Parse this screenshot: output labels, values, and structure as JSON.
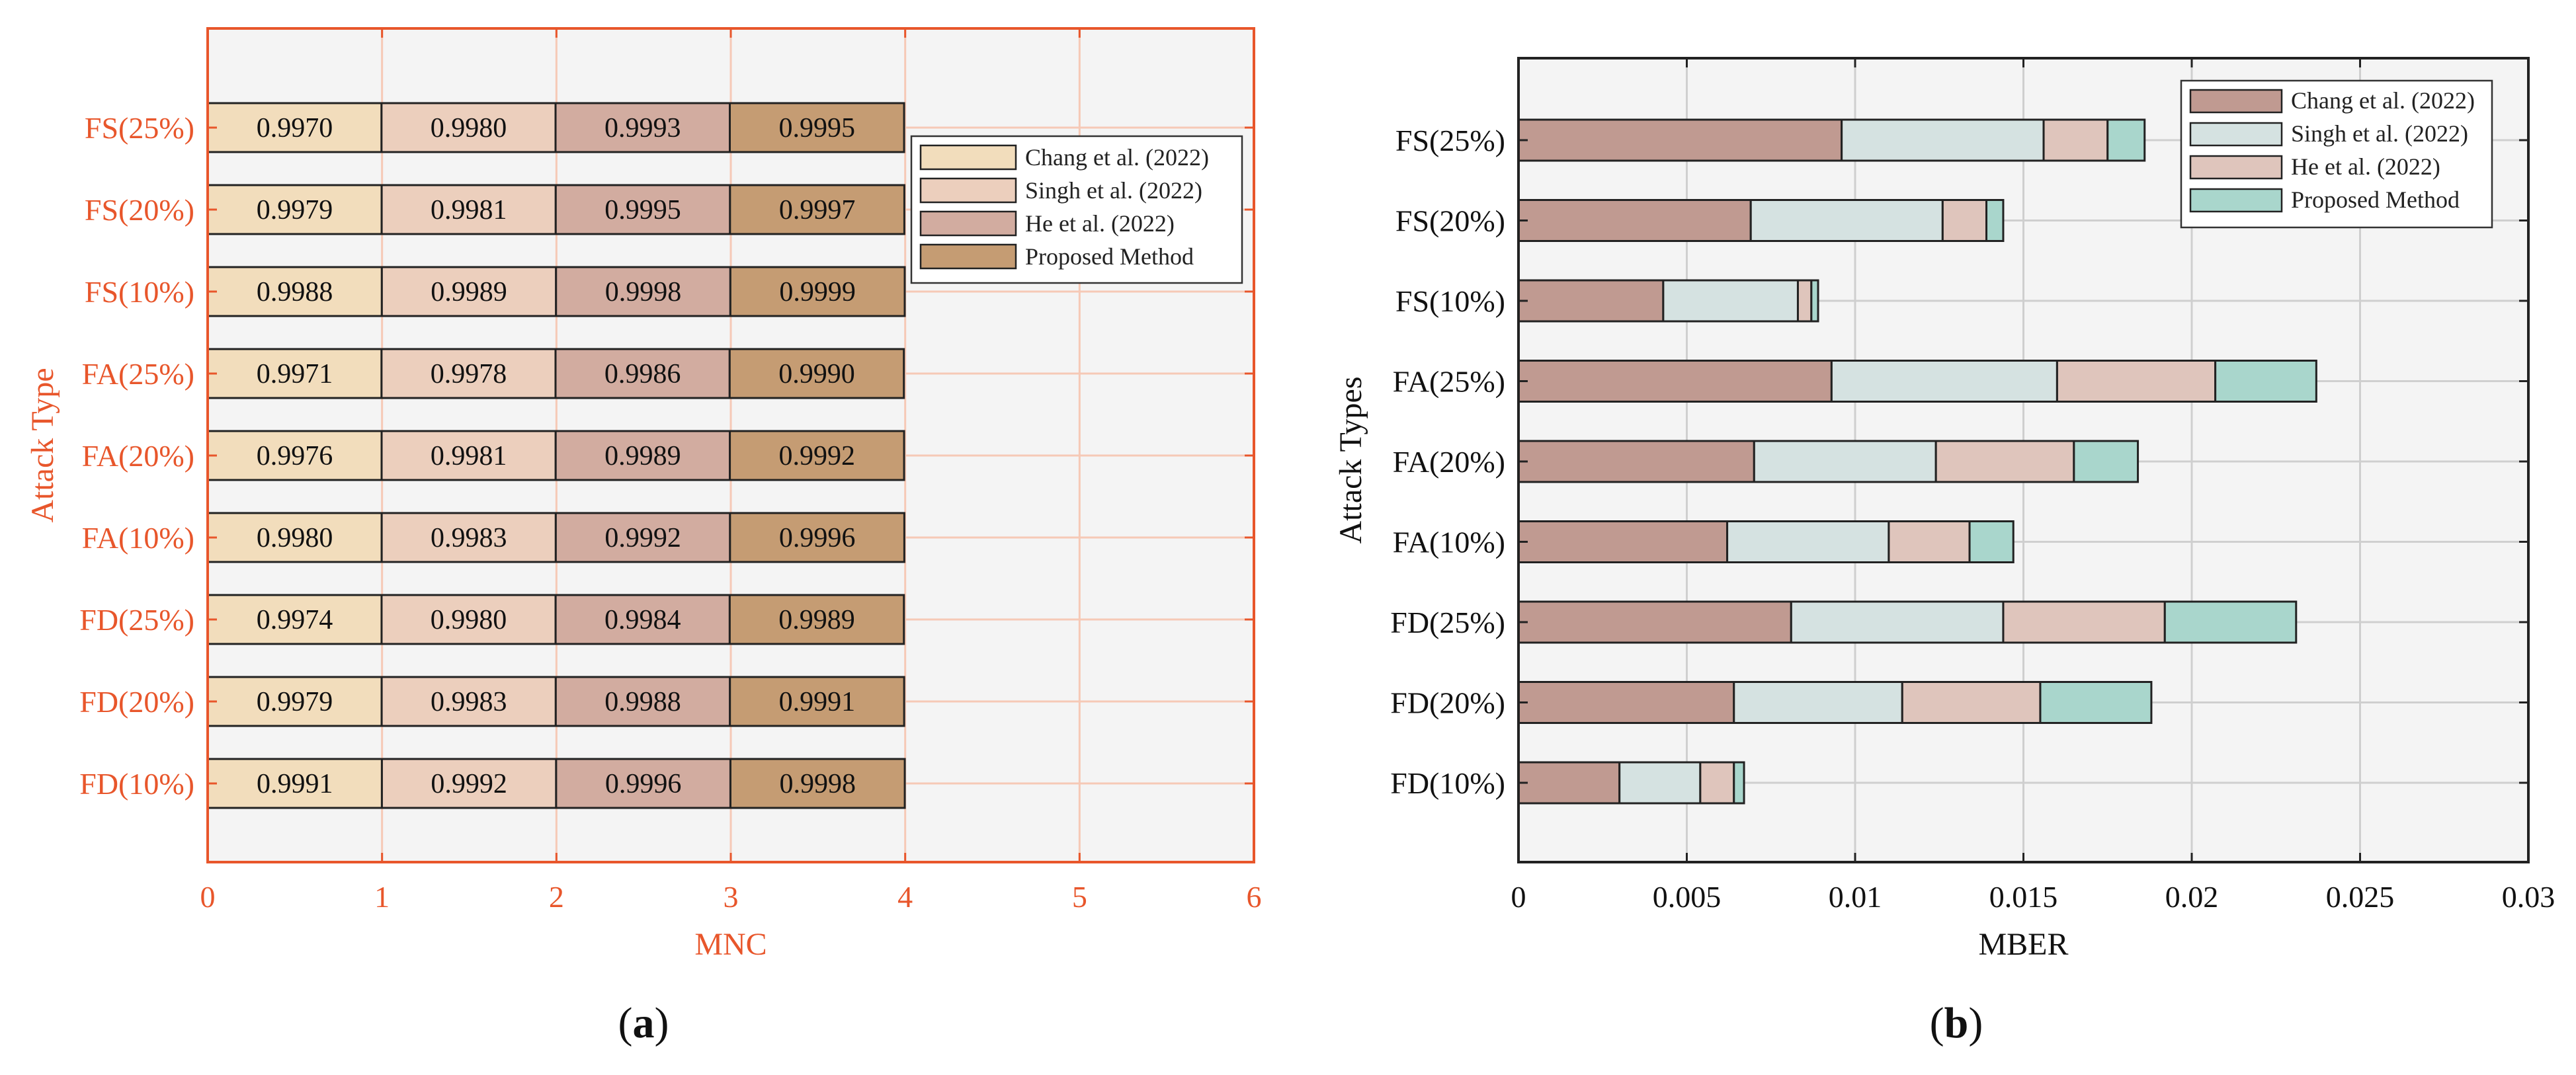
{
  "captions": {
    "left": "a",
    "right": "b"
  },
  "colors": {
    "left_axis": "#e8562b",
    "left_series": [
      "#f2ddbc",
      "#eccfbd",
      "#d2aca0",
      "#c59c73"
    ],
    "right_series": [
      "#c09a91",
      "#d5e2e1",
      "#dfc5bc",
      "#a9d6cc"
    ],
    "plot_bg": "#f4f4f4",
    "grid_left": "#f6c9b6",
    "grid_right": "#cfcfcf"
  },
  "chart_data": [
    {
      "type": "bar",
      "stacked": true,
      "orientation": "horizontal",
      "title": "",
      "xlabel": "MNC",
      "ylabel": "Attack Type",
      "xlim": [
        0,
        6
      ],
      "xticks": [
        "0",
        "1",
        "2",
        "3",
        "4",
        "5",
        "6"
      ],
      "grid": true,
      "legend_position": "upper-right",
      "categories": [
        "FS(25%)",
        "FS(20%)",
        "FS(10%)",
        "FA(25%)",
        "FA(20%)",
        "FA(10%)",
        "FD(25%)",
        "FD(20%)",
        "FD(10%)"
      ],
      "series": [
        {
          "name": "Chang et al. (2022)",
          "values": [
            0.997,
            0.9979,
            0.9988,
            0.9971,
            0.9976,
            0.998,
            0.9974,
            0.9979,
            0.9991
          ]
        },
        {
          "name": "Singh et al. (2022)",
          "values": [
            0.998,
            0.9981,
            0.9989,
            0.9978,
            0.9981,
            0.9983,
            0.998,
            0.9983,
            0.9992
          ]
        },
        {
          "name": "He et al. (2022)",
          "values": [
            0.9993,
            0.9995,
            0.9998,
            0.9986,
            0.9989,
            0.9992,
            0.9984,
            0.9988,
            0.9996
          ]
        },
        {
          "name": "Proposed Method",
          "values": [
            0.9995,
            0.9997,
            0.9999,
            0.999,
            0.9992,
            0.9996,
            0.9989,
            0.9991,
            0.9998
          ]
        }
      ],
      "data_labels": [
        [
          "0.9970",
          "0.9979",
          "0.9988",
          "0.9971",
          "0.9976",
          "0.9980",
          "0.9974",
          "0.9979",
          "0.9991"
        ],
        [
          "0.9980",
          "0.9981",
          "0.9989",
          "0.9978",
          "0.9981",
          "0.9983",
          "0.9980",
          "0.9983",
          "0.9992"
        ],
        [
          "0.9993",
          "0.9995",
          "0.9998",
          "0.9986",
          "0.9989",
          "0.9992",
          "0.9984",
          "0.9988",
          "0.9996"
        ],
        [
          "0.9995",
          "0.9997",
          "0.9999",
          "0.9990",
          "0.9992",
          "0.9996",
          "0.9989",
          "0.9991",
          "0.9998"
        ]
      ]
    },
    {
      "type": "bar",
      "stacked": true,
      "orientation": "horizontal",
      "title": "",
      "xlabel": "MBER",
      "ylabel": "Attack Types",
      "xlim": [
        0,
        0.03
      ],
      "xticks": [
        "0",
        "0.005",
        "0.01",
        "0.015",
        "0.02",
        "0.025",
        "0.03"
      ],
      "grid": true,
      "legend_position": "upper-right",
      "categories": [
        "FS(25%)",
        "FS(20%)",
        "FS(10%)",
        "FA(25%)",
        "FA(20%)",
        "FA(10%)",
        "FD(25%)",
        "FD(20%)",
        "FD(10%)"
      ],
      "series": [
        {
          "name": "Chang et al. (2022)",
          "values": [
            0.0096,
            0.0069,
            0.0043,
            0.0093,
            0.007,
            0.0062,
            0.0081,
            0.0064,
            0.003
          ]
        },
        {
          "name": "Singh et al. (2022)",
          "values": [
            0.006,
            0.0057,
            0.004,
            0.0067,
            0.0054,
            0.0048,
            0.0063,
            0.005,
            0.0024
          ]
        },
        {
          "name": "He et al. (2022)",
          "values": [
            0.0019,
            0.0013,
            0.0004,
            0.0047,
            0.0041,
            0.0024,
            0.0048,
            0.0041,
            0.001
          ]
        },
        {
          "name": "Proposed Method",
          "values": [
            0.0011,
            0.0005,
            0.0002,
            0.003,
            0.0019,
            0.0013,
            0.0039,
            0.0033,
            0.0003
          ]
        }
      ]
    }
  ]
}
